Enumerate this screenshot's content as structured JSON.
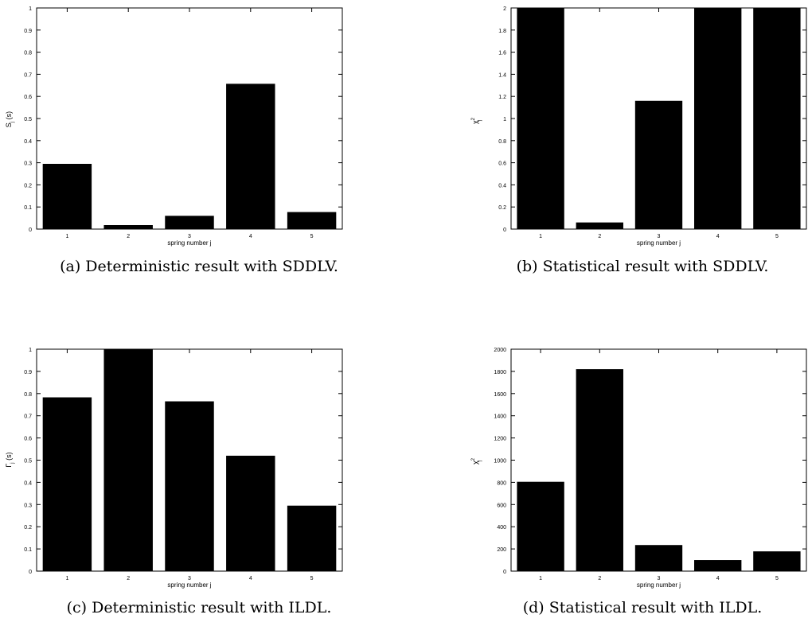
{
  "chart_data": [
    {
      "type": "bar",
      "categories": [
        "1",
        "2",
        "3",
        "4",
        "5"
      ],
      "values": [
        0.295,
        0.018,
        0.06,
        0.657,
        0.077
      ],
      "ylim": [
        0,
        1
      ],
      "yticks": [
        "0",
        "0.1",
        "0.2",
        "0.3",
        "0.4",
        "0.5",
        "0.6",
        "0.7",
        "0.8",
        "0.9",
        "1"
      ],
      "ytick_values": [
        0,
        0.1,
        0.2,
        0.3,
        0.4,
        0.5,
        0.6,
        0.7,
        0.8,
        0.9,
        1
      ],
      "ylabel": "S",
      "ylabel_sub": "j",
      "ylabel_suffix": " (s)",
      "xlabel": "spring number j",
      "caption": "(a) Deterministic result with SDDLV.",
      "bar_color": "#000000"
    },
    {
      "type": "bar",
      "categories": [
        "1",
        "2",
        "3",
        "4",
        "5"
      ],
      "values": [
        2,
        0.06,
        1.16,
        2,
        2
      ],
      "ylim": [
        0,
        2
      ],
      "yticks": [
        "0",
        "0.2",
        "0.4",
        "0.6",
        "0.8",
        "1",
        "1.2",
        "1.4",
        "1.6",
        "1.8",
        "2"
      ],
      "ytick_values": [
        0,
        0.2,
        0.4,
        0.6,
        0.8,
        1,
        1.2,
        1.4,
        1.6,
        1.8,
        2
      ],
      "ylabel": "χ",
      "ylabel_sub": "j",
      "ylabel_sup": "2",
      "xlabel": "spring number j",
      "caption": "(b) Statistical result with SDDLV.",
      "bar_color": "#000000"
    },
    {
      "type": "bar",
      "categories": [
        "1",
        "2",
        "3",
        "4",
        "5"
      ],
      "values": [
        0.783,
        1.0,
        0.765,
        0.52,
        0.295
      ],
      "ylim": [
        0,
        1
      ],
      "yticks": [
        "0",
        "0.1",
        "0.2",
        "0.3",
        "0.4",
        "0.5",
        "0.6",
        "0.7",
        "0.8",
        "0.9",
        "1"
      ],
      "ytick_values": [
        0,
        0.1,
        0.2,
        0.3,
        0.4,
        0.5,
        0.6,
        0.7,
        0.8,
        0.9,
        1
      ],
      "ylabel": "Γ",
      "ylabel_sub": "j",
      "ylabel_suffix": " (s)",
      "xlabel": "spring number j",
      "caption": "(c) Deterministic result with ILDL.",
      "bar_color": "#000000"
    },
    {
      "type": "bar",
      "categories": [
        "1",
        "2",
        "3",
        "4",
        "5"
      ],
      "values": [
        805,
        1820,
        235,
        100,
        178
      ],
      "ylim": [
        0,
        2000
      ],
      "yticks": [
        "0",
        "200",
        "400",
        "600",
        "800",
        "1000",
        "1200",
        "1400",
        "1600",
        "1800",
        "2000"
      ],
      "ytick_values": [
        0,
        200,
        400,
        600,
        800,
        1000,
        1200,
        1400,
        1600,
        1800,
        2000
      ],
      "ylabel": "χ",
      "ylabel_sub": "j",
      "ylabel_sup": "2",
      "xlabel": "spring number j",
      "caption": "(d) Statistical result with ILDL.",
      "bar_color": "#000000"
    }
  ]
}
